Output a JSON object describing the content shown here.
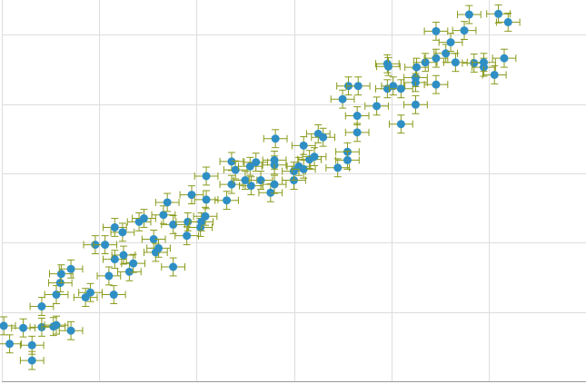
{
  "chart_data": {
    "type": "scatter",
    "title": "",
    "xlabel": "",
    "ylabel": "",
    "grid": true,
    "xlim": [
      0,
      6
    ],
    "ylim": [
      0,
      5.5
    ],
    "x_error": 0.12,
    "y_error": 0.13,
    "colors": {
      "point": "#2f8fc4",
      "error_bar": "#8a9a1a",
      "grid": "#dddddd",
      "axis": "#999999"
    },
    "series": [
      {
        "points": [
          {
            "x": 0.02,
            "y": 0.8
          },
          {
            "x": 0.08,
            "y": 0.54
          },
          {
            "x": 0.22,
            "y": 0.77
          },
          {
            "x": 0.31,
            "y": 0.52
          },
          {
            "x": 0.31,
            "y": 0.3
          },
          {
            "x": 0.41,
            "y": 0.78
          },
          {
            "x": 0.41,
            "y": 1.08
          },
          {
            "x": 0.53,
            "y": 0.79
          },
          {
            "x": 0.56,
            "y": 0.81
          },
          {
            "x": 0.56,
            "y": 1.25
          },
          {
            "x": 0.6,
            "y": 1.42
          },
          {
            "x": 0.61,
            "y": 1.55
          },
          {
            "x": 0.71,
            "y": 0.73
          },
          {
            "x": 0.71,
            "y": 1.62
          },
          {
            "x": 0.86,
            "y": 1.21
          },
          {
            "x": 0.91,
            "y": 1.28
          },
          {
            "x": 0.96,
            "y": 1.97
          },
          {
            "x": 1.06,
            "y": 1.97
          },
          {
            "x": 1.1,
            "y": 1.52
          },
          {
            "x": 1.15,
            "y": 1.25
          },
          {
            "x": 1.16,
            "y": 1.76
          },
          {
            "x": 1.16,
            "y": 2.22
          },
          {
            "x": 1.24,
            "y": 2.15
          },
          {
            "x": 1.25,
            "y": 1.82
          },
          {
            "x": 1.31,
            "y": 1.58
          },
          {
            "x": 1.35,
            "y": 1.7
          },
          {
            "x": 1.41,
            "y": 2.3
          },
          {
            "x": 1.46,
            "y": 2.35
          },
          {
            "x": 1.56,
            "y": 2.05
          },
          {
            "x": 1.58,
            "y": 1.86
          },
          {
            "x": 1.61,
            "y": 1.92
          },
          {
            "x": 1.66,
            "y": 2.4
          },
          {
            "x": 1.7,
            "y": 2.58
          },
          {
            "x": 1.76,
            "y": 1.65
          },
          {
            "x": 1.76,
            "y": 2.26
          },
          {
            "x": 1.9,
            "y": 2.1
          },
          {
            "x": 1.91,
            "y": 2.3
          },
          {
            "x": 1.95,
            "y": 2.69
          },
          {
            "x": 2.04,
            "y": 2.22
          },
          {
            "x": 2.05,
            "y": 2.3
          },
          {
            "x": 2.09,
            "y": 2.38
          },
          {
            "x": 2.1,
            "y": 2.96
          },
          {
            "x": 2.1,
            "y": 2.62
          },
          {
            "x": 2.31,
            "y": 2.61
          },
          {
            "x": 2.36,
            "y": 3.17
          },
          {
            "x": 2.36,
            "y": 2.84
          },
          {
            "x": 2.4,
            "y": 3.05
          },
          {
            "x": 2.5,
            "y": 2.9
          },
          {
            "x": 2.55,
            "y": 3.1
          },
          {
            "x": 2.56,
            "y": 2.82
          },
          {
            "x": 2.61,
            "y": 3.16
          },
          {
            "x": 2.66,
            "y": 2.9
          },
          {
            "x": 2.76,
            "y": 2.72
          },
          {
            "x": 2.8,
            "y": 2.84
          },
          {
            "x": 2.81,
            "y": 3.5
          },
          {
            "x": 2.8,
            "y": 3.12
          },
          {
            "x": 2.8,
            "y": 3.19
          },
          {
            "x": 3.0,
            "y": 2.9
          },
          {
            "x": 3.0,
            "y": 3.03
          },
          {
            "x": 3.05,
            "y": 3.1
          },
          {
            "x": 3.1,
            "y": 3.4
          },
          {
            "x": 3.1,
            "y": 3.06
          },
          {
            "x": 3.16,
            "y": 3.2
          },
          {
            "x": 3.21,
            "y": 3.24
          },
          {
            "x": 3.25,
            "y": 3.57
          },
          {
            "x": 3.3,
            "y": 3.52
          },
          {
            "x": 3.45,
            "y": 3.08
          },
          {
            "x": 3.5,
            "y": 4.07
          },
          {
            "x": 3.55,
            "y": 3.31
          },
          {
            "x": 3.55,
            "y": 3.19
          },
          {
            "x": 3.56,
            "y": 4.26
          },
          {
            "x": 3.65,
            "y": 3.59
          },
          {
            "x": 3.65,
            "y": 3.83
          },
          {
            "x": 3.66,
            "y": 4.26
          },
          {
            "x": 3.85,
            "y": 3.97
          },
          {
            "x": 3.96,
            "y": 4.22
          },
          {
            "x": 3.96,
            "y": 4.58
          },
          {
            "x": 3.97,
            "y": 4.54
          },
          {
            "x": 4.02,
            "y": 4.26
          },
          {
            "x": 4.1,
            "y": 3.71
          },
          {
            "x": 4.1,
            "y": 4.22
          },
          {
            "x": 4.25,
            "y": 4.31
          },
          {
            "x": 4.25,
            "y": 4.38
          },
          {
            "x": 4.25,
            "y": 3.99
          },
          {
            "x": 4.26,
            "y": 4.53
          },
          {
            "x": 4.35,
            "y": 4.6
          },
          {
            "x": 4.46,
            "y": 4.66
          },
          {
            "x": 4.46,
            "y": 4.28
          },
          {
            "x": 4.46,
            "y": 5.05
          },
          {
            "x": 4.56,
            "y": 4.73
          },
          {
            "x": 4.61,
            "y": 4.89
          },
          {
            "x": 4.66,
            "y": 4.6
          },
          {
            "x": 4.75,
            "y": 5.06
          },
          {
            "x": 4.8,
            "y": 5.29
          },
          {
            "x": 4.85,
            "y": 4.59
          },
          {
            "x": 4.95,
            "y": 4.53
          },
          {
            "x": 4.95,
            "y": 4.6
          },
          {
            "x": 5.06,
            "y": 4.42
          },
          {
            "x": 5.1,
            "y": 5.3
          },
          {
            "x": 5.16,
            "y": 4.66
          },
          {
            "x": 5.2,
            "y": 5.18
          }
        ]
      }
    ]
  }
}
